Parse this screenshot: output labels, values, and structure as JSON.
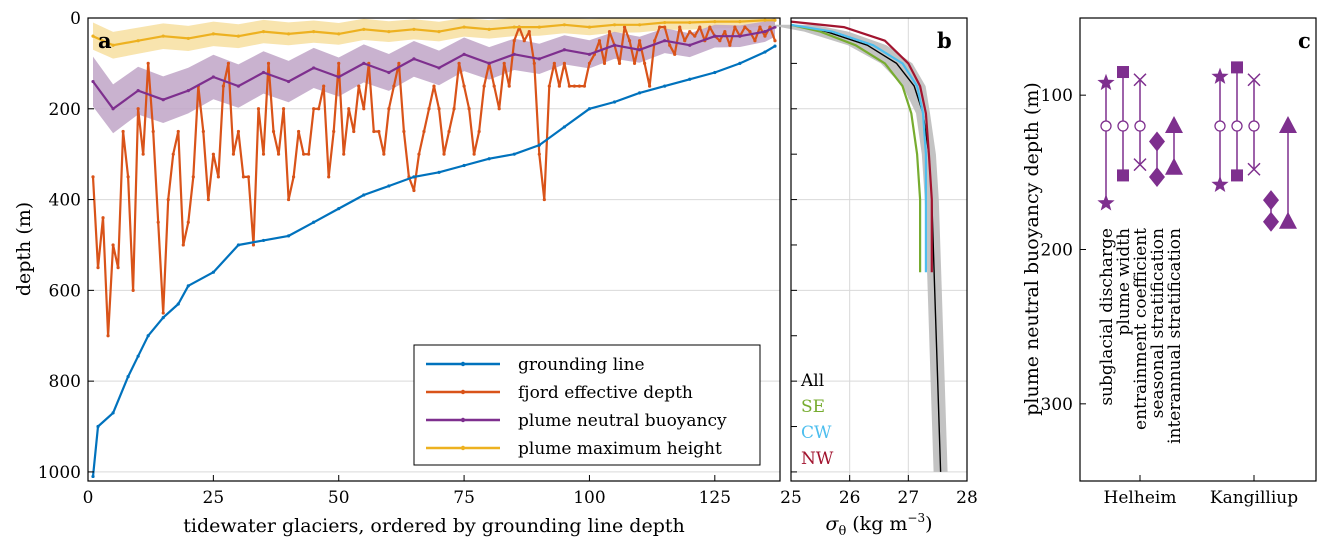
{
  "colors": {
    "grounding": "#0072BD",
    "fjord": "#D95319",
    "plume": "#7E2F8E",
    "plumeShade": "#bfa4c7",
    "height": "#EDB120",
    "heightShade": "#f7dfa0",
    "profileAll": "#000000",
    "profileSE": "#77AC30",
    "profileCW": "#4DBEEE",
    "profileNW": "#A2142F",
    "envelope": "#bdbdbd"
  },
  "panels": {
    "a": {
      "label": "a",
      "xlabel": "tidewater glaciers, ordered by grounding line depth",
      "ylabel": "depth (m)",
      "xticks": [
        "0",
        "25",
        "50",
        "75",
        "100",
        "125"
      ],
      "yticks": [
        "0",
        "200",
        "400",
        "600",
        "800",
        "1000"
      ],
      "legend": [
        "grounding line",
        "fjord effective depth",
        "plume neutral buoyancy",
        "plume maximum height"
      ]
    },
    "b": {
      "label": "b",
      "xlabel_sym": "σ",
      "xlabel_sub": "θ",
      "xlabel_unit": "(kg m",
      "xlabel_exp": "−3",
      "xlabel_close": ")",
      "xticks": [
        "25",
        "26",
        "27",
        "28"
      ],
      "legend": [
        "All",
        "SE",
        "CW",
        "NW"
      ]
    },
    "c": {
      "label": "c",
      "ylabel": "plume neutral buoyancy depth (m)",
      "yticks": [
        "100",
        "200",
        "300"
      ],
      "categories": [
        "Helheim",
        "Kangilliup"
      ],
      "sensitivity_labels": [
        "subglacial discharge",
        "plume width",
        "entrainment coefficient",
        "seasonal stratification",
        "interannual stratification"
      ]
    }
  },
  "chart_data": [
    {
      "type": "line",
      "panel": "a",
      "xlabel": "tidewater glaciers, ordered by grounding line depth",
      "ylabel": "depth (m)",
      "xlim": [
        0,
        138
      ],
      "ylim": [
        1020,
        0
      ],
      "grid": true,
      "legend_position": "bottom-right",
      "series": [
        {
          "name": "grounding line",
          "x": [
            1,
            2,
            5,
            8,
            10,
            12,
            15,
            18,
            20,
            25,
            30,
            35,
            40,
            45,
            50,
            55,
            60,
            65,
            70,
            75,
            80,
            85,
            90,
            95,
            100,
            105,
            110,
            115,
            120,
            125,
            130,
            135,
            137
          ],
          "y": [
            1010,
            900,
            870,
            790,
            745,
            700,
            660,
            630,
            590,
            560,
            500,
            490,
            480,
            450,
            420,
            390,
            370,
            350,
            340,
            325,
            310,
            300,
            280,
            240,
            200,
            185,
            165,
            150,
            135,
            120,
            100,
            75,
            62
          ]
        },
        {
          "name": "fjord effective depth",
          "x": [
            1,
            2,
            3,
            4,
            5,
            6,
            7,
            8,
            9,
            10,
            11,
            12,
            13,
            14,
            15,
            16,
            17,
            18,
            19,
            20,
            21,
            22,
            23,
            24,
            25,
            26,
            27,
            28,
            29,
            30,
            31,
            32,
            33,
            34,
            35,
            36,
            37,
            38,
            39,
            40,
            41,
            42,
            43,
            44,
            45,
            46,
            47,
            48,
            49,
            50,
            51,
            52,
            53,
            54,
            55,
            56,
            57,
            58,
            59,
            60,
            61,
            62,
            63,
            64,
            65,
            66,
            67,
            68,
            69,
            70,
            71,
            72,
            73,
            74,
            75,
            76,
            77,
            78,
            79,
            80,
            81,
            82,
            83,
            84,
            85,
            86,
            87,
            88,
            89,
            90,
            91,
            92,
            93,
            94,
            95,
            96,
            97,
            98,
            99,
            100,
            101,
            102,
            103,
            104,
            105,
            106,
            107,
            108,
            109,
            110,
            111,
            112,
            113,
            114,
            115,
            116,
            117,
            118,
            119,
            120,
            121,
            122,
            123,
            124,
            125,
            126,
            127,
            128,
            129,
            130,
            131,
            132,
            133,
            134,
            135,
            136,
            137
          ],
          "y": [
            350,
            550,
            440,
            700,
            500,
            550,
            250,
            350,
            600,
            200,
            300,
            100,
            250,
            450,
            650,
            400,
            300,
            250,
            500,
            450,
            350,
            150,
            250,
            400,
            300,
            350,
            150,
            100,
            300,
            250,
            350,
            350,
            500,
            200,
            300,
            100,
            250,
            300,
            200,
            400,
            350,
            250,
            300,
            300,
            200,
            200,
            150,
            350,
            250,
            100,
            300,
            200,
            250,
            150,
            200,
            100,
            250,
            250,
            300,
            200,
            150,
            100,
            250,
            350,
            380,
            300,
            250,
            200,
            150,
            200,
            300,
            250,
            200,
            100,
            150,
            200,
            300,
            250,
            150,
            100,
            150,
            200,
            100,
            150,
            50,
            20,
            50,
            30,
            100,
            300,
            400,
            150,
            100,
            150,
            100,
            150,
            150,
            150,
            150,
            100,
            80,
            50,
            100,
            30,
            60,
            100,
            20,
            50,
            100,
            50,
            100,
            150,
            50,
            20,
            20,
            60,
            80,
            20,
            50,
            30,
            40,
            20,
            50,
            20,
            40,
            50,
            30,
            60,
            20,
            40,
            20,
            30,
            50,
            20,
            40,
            20,
            50
          ]
        },
        {
          "name": "plume neutral buoyancy",
          "x": [
            1,
            5,
            10,
            15,
            20,
            25,
            30,
            35,
            40,
            45,
            50,
            55,
            60,
            65,
            70,
            75,
            80,
            85,
            90,
            95,
            100,
            105,
            110,
            115,
            120,
            125,
            130,
            135,
            137
          ],
          "y": [
            140,
            200,
            160,
            180,
            160,
            130,
            150,
            120,
            140,
            110,
            130,
            100,
            120,
            90,
            110,
            80,
            100,
            80,
            90,
            70,
            80,
            60,
            70,
            50,
            60,
            40,
            40,
            30,
            20
          ]
        },
        {
          "name": "plume maximum height",
          "x": [
            1,
            5,
            10,
            15,
            20,
            25,
            30,
            35,
            40,
            45,
            50,
            55,
            60,
            65,
            70,
            75,
            80,
            85,
            90,
            95,
            100,
            105,
            110,
            115,
            120,
            125,
            130,
            135,
            137
          ],
          "y": [
            40,
            60,
            50,
            40,
            45,
            35,
            40,
            30,
            35,
            30,
            35,
            25,
            30,
            25,
            30,
            20,
            25,
            20,
            20,
            15,
            20,
            15,
            15,
            10,
            10,
            8,
            8,
            5,
            5
          ]
        }
      ]
    },
    {
      "type": "line",
      "panel": "b",
      "xlabel": "σθ (kg m−3)",
      "xlim": [
        25,
        28
      ],
      "ylim": [
        1020,
        0
      ],
      "grid": true,
      "legend_position": "bottom-left",
      "series": [
        {
          "name": "All",
          "x": [
            25.0,
            25.6,
            26.3,
            26.8,
            27.1,
            27.25,
            27.35,
            27.4,
            27.45,
            27.5,
            27.55
          ],
          "y": [
            15,
            30,
            60,
            100,
            150,
            210,
            300,
            400,
            600,
            800,
            1000
          ]
        },
        {
          "name": "SE",
          "x": [
            25.0,
            25.5,
            26.1,
            26.6,
            26.9,
            27.05,
            27.15,
            27.2,
            27.2
          ],
          "y": [
            15,
            30,
            60,
            100,
            150,
            210,
            300,
            400,
            560
          ]
        },
        {
          "name": "CW",
          "x": [
            25.0,
            25.7,
            26.4,
            26.9,
            27.15,
            27.25,
            27.3,
            27.3,
            27.3
          ],
          "y": [
            15,
            30,
            60,
            100,
            150,
            210,
            300,
            400,
            560
          ]
        },
        {
          "name": "NW",
          "x": [
            25.0,
            25.9,
            26.6,
            27.0,
            27.2,
            27.3,
            27.35,
            27.4,
            27.4
          ],
          "y": [
            8,
            20,
            50,
            100,
            150,
            210,
            300,
            400,
            560
          ]
        }
      ]
    },
    {
      "type": "scatter",
      "panel": "c",
      "ylabel": "plume neutral buoyancy depth (m)",
      "ylim": [
        350,
        50
      ],
      "categories": [
        "Helheim",
        "Kangilliup"
      ],
      "baseline_depth": [
        120,
        120
      ],
      "series": [
        {
          "name": "subglacial discharge",
          "marker": "star",
          "Helheim": [
            92,
            170
          ],
          "Kangilliup": [
            88,
            158
          ]
        },
        {
          "name": "plume width",
          "marker": "square",
          "Helheim": [
            85,
            152
          ],
          "Kangilliup": [
            82,
            152
          ]
        },
        {
          "name": "entrainment coefficient",
          "marker": "x",
          "Helheim": [
            90,
            145
          ],
          "Kangilliup": [
            90,
            148
          ]
        },
        {
          "name": "seasonal stratification",
          "marker": "diamond",
          "Helheim": [
            130,
            153
          ],
          "Kangilliup": [
            168,
            182
          ]
        },
        {
          "name": "interannual stratification",
          "marker": "triangle",
          "Helheim": [
            120,
            147
          ],
          "Kangilliup": [
            120,
            182
          ]
        }
      ]
    }
  ]
}
